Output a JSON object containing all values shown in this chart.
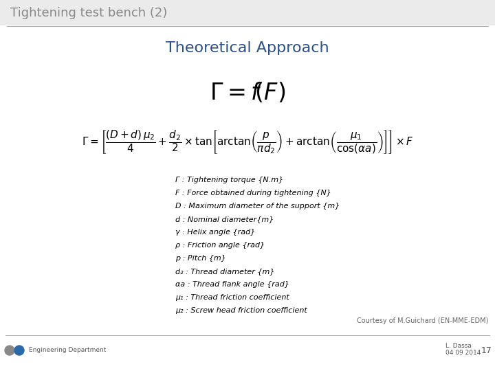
{
  "title": "Tightening test bench (2)",
  "subtitle": "Theoretical Approach",
  "subtitle_color": "#2B4F8A",
  "slide_bg": "#FFFFFF",
  "title_color": "#888888",
  "legend_lines_plain": [
    "Γ : Tightening torque {N.m}",
    "F : Force obtained during tightening {N}",
    "D : Maximum diameter of the support {m}",
    "d : Nominal diameter{m}",
    "γ : Helix angle {rad}",
    "ρ : Friction angle {rad}",
    "p : Pitch {m}",
    "d₂ : Thread diameter {m}",
    "αa : Thread flank angle {rad}",
    "μ₁ : Thread friction coefficient",
    "μ₂ : Screw head friction coefficient"
  ],
  "courtesy": "Courtesy of M.Guichard (EN-MME-EDM)",
  "footer_left": "Engineering Department",
  "page_number": "17",
  "divider_color": "#AAAAAA",
  "title_bar_color": "#EBEBEB"
}
